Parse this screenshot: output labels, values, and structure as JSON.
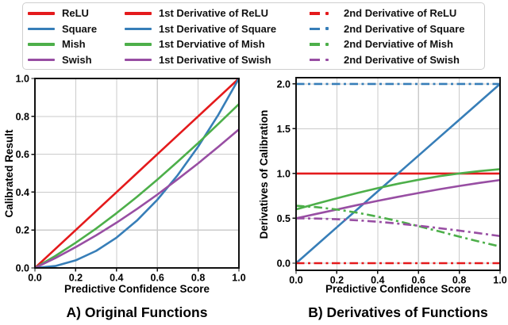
{
  "colors": {
    "relu": "#e41a1c",
    "square": "#377eb8",
    "mish": "#4daf4a",
    "swish": "#984ea3",
    "grid": "#cbcbcb",
    "spine": "#111111"
  },
  "legend": {
    "columns": [
      {
        "name": "functions",
        "entries": [
          {
            "label": "ReLU",
            "color": "relu",
            "style": "solid"
          },
          {
            "label": "Square",
            "color": "square",
            "style": "solid"
          },
          {
            "label": "Mish",
            "color": "mish",
            "style": "solid"
          },
          {
            "label": "Swish",
            "color": "swish",
            "style": "solid"
          }
        ]
      },
      {
        "name": "first-derivatives",
        "entries": [
          {
            "label": "1st Derivative of ReLU",
            "color": "relu",
            "style": "solid"
          },
          {
            "label": "1st Derivative of Square",
            "color": "square",
            "style": "solid"
          },
          {
            "label": "1st Derviative of Mish",
            "color": "mish",
            "style": "solid"
          },
          {
            "label": "1st Derivative of Swish",
            "color": "swish",
            "style": "solid"
          }
        ]
      },
      {
        "name": "second-derivatives",
        "entries": [
          {
            "label": "2nd Derivative of ReLU",
            "color": "relu",
            "style": "dashdot"
          },
          {
            "label": "2nd Derivative of Square",
            "color": "square",
            "style": "dashdot"
          },
          {
            "label": "2nd Derviative of Mish",
            "color": "mish",
            "style": "dashdot"
          },
          {
            "label": "2nd Derivative of Swish",
            "color": "swish",
            "style": "dashdot"
          }
        ]
      }
    ]
  },
  "chart_data": [
    {
      "type": "line",
      "title": "A) Original Functions",
      "xlabel": "Predictive Confidence Score",
      "ylabel": "Calibrated Result",
      "xlim": [
        0,
        1
      ],
      "ylim": [
        0,
        1
      ],
      "grid": true,
      "xticks": {
        "values": [
          0,
          0.2,
          0.4,
          0.6,
          0.8,
          1.0
        ],
        "labels": [
          "0.0",
          "0.2",
          "0.4",
          "0.6",
          "0.8",
          "1.0"
        ]
      },
      "yticks": {
        "values": [
          0,
          0.2,
          0.4,
          0.6,
          0.8,
          1.0
        ],
        "labels": [
          "0.0",
          "0.2",
          "0.4",
          "0.6",
          "0.8",
          "1.0"
        ]
      },
      "x": [
        0,
        0.1,
        0.2,
        0.3,
        0.4,
        0.5,
        0.6,
        0.7,
        0.8,
        0.9,
        1.0
      ],
      "series": [
        {
          "name": "ReLU",
          "color": "relu",
          "style": "solid",
          "y": [
            0,
            0.1,
            0.2,
            0.3,
            0.4,
            0.5,
            0.6,
            0.7,
            0.8,
            0.9,
            1.0
          ]
        },
        {
          "name": "Square",
          "color": "square",
          "style": "solid",
          "y": [
            0,
            0.01,
            0.04,
            0.09,
            0.16,
            0.25,
            0.36,
            0.49,
            0.64,
            0.81,
            1.0
          ]
        },
        {
          "name": "Mish",
          "color": "mish",
          "style": "solid",
          "y": [
            0,
            0.063,
            0.133,
            0.208,
            0.289,
            0.375,
            0.466,
            0.561,
            0.659,
            0.761,
            0.865
          ]
        },
        {
          "name": "Swish",
          "color": "swish",
          "style": "solid",
          "y": [
            0,
            0.052,
            0.11,
            0.172,
            0.239,
            0.311,
            0.387,
            0.468,
            0.552,
            0.64,
            0.731
          ]
        }
      ]
    },
    {
      "type": "line",
      "title": "B) Derivatives of Functions",
      "xlabel": "Predictive Confidence Score",
      "ylabel": "Derivatives of Calibration",
      "xlim": [
        0,
        1
      ],
      "ylim": [
        -0.08,
        2.07
      ],
      "grid": true,
      "xticks": {
        "values": [
          0,
          0.2,
          0.4,
          0.6,
          0.8,
          1.0
        ],
        "labels": [
          "0.0",
          "0.2",
          "0.4",
          "0.6",
          "0.8",
          "1.0"
        ]
      },
      "yticks": {
        "values": [
          0,
          0.5,
          1.0,
          1.5,
          2.0
        ],
        "labels": [
          "0.0",
          "0.5",
          "1.0",
          "1.5",
          "2.0"
        ]
      },
      "x": [
        0,
        0.1,
        0.2,
        0.3,
        0.4,
        0.5,
        0.6,
        0.7,
        0.8,
        0.9,
        1.0
      ],
      "series": [
        {
          "name": "1st Derivative of ReLU",
          "color": "relu",
          "style": "solid",
          "y": [
            1,
            1,
            1,
            1,
            1,
            1,
            1,
            1,
            1,
            1,
            1
          ]
        },
        {
          "name": "1st Derivative of Square",
          "color": "square",
          "style": "solid",
          "y": [
            0,
            0.2,
            0.4,
            0.6,
            0.8,
            1.0,
            1.2,
            1.4,
            1.6,
            1.8,
            2.0
          ]
        },
        {
          "name": "1st Derviative of Mish",
          "color": "mish",
          "style": "solid",
          "y": [
            0.6,
            0.663,
            0.724,
            0.783,
            0.837,
            0.886,
            0.93,
            0.969,
            1.001,
            1.028,
            1.049
          ]
        },
        {
          "name": "1st Derivative of Swish",
          "color": "swish",
          "style": "solid",
          "y": [
            0.5,
            0.55,
            0.599,
            0.648,
            0.695,
            0.74,
            0.783,
            0.823,
            0.861,
            0.896,
            0.928
          ]
        },
        {
          "name": "2nd Derivative of ReLU",
          "color": "relu",
          "style": "dashdot",
          "y": [
            0,
            0,
            0,
            0,
            0,
            0,
            0,
            0,
            0,
            0,
            0
          ]
        },
        {
          "name": "2nd Derivative of Square",
          "color": "square",
          "style": "dashdot",
          "y": [
            2,
            2,
            2,
            2,
            2,
            2,
            2,
            2,
            2,
            2,
            2
          ]
        },
        {
          "name": "2nd Derviative of Mish",
          "color": "mish",
          "style": "dashdot",
          "y": [
            0.64,
            0.625,
            0.599,
            0.563,
            0.519,
            0.469,
            0.413,
            0.355,
            0.296,
            0.239,
            0.185
          ]
        },
        {
          "name": "2nd Derivative of Swish",
          "color": "swish",
          "style": "dashdot",
          "y": [
            0.5,
            0.498,
            0.49,
            0.478,
            0.462,
            0.441,
            0.418,
            0.391,
            0.363,
            0.333,
            0.302
          ]
        }
      ]
    }
  ]
}
